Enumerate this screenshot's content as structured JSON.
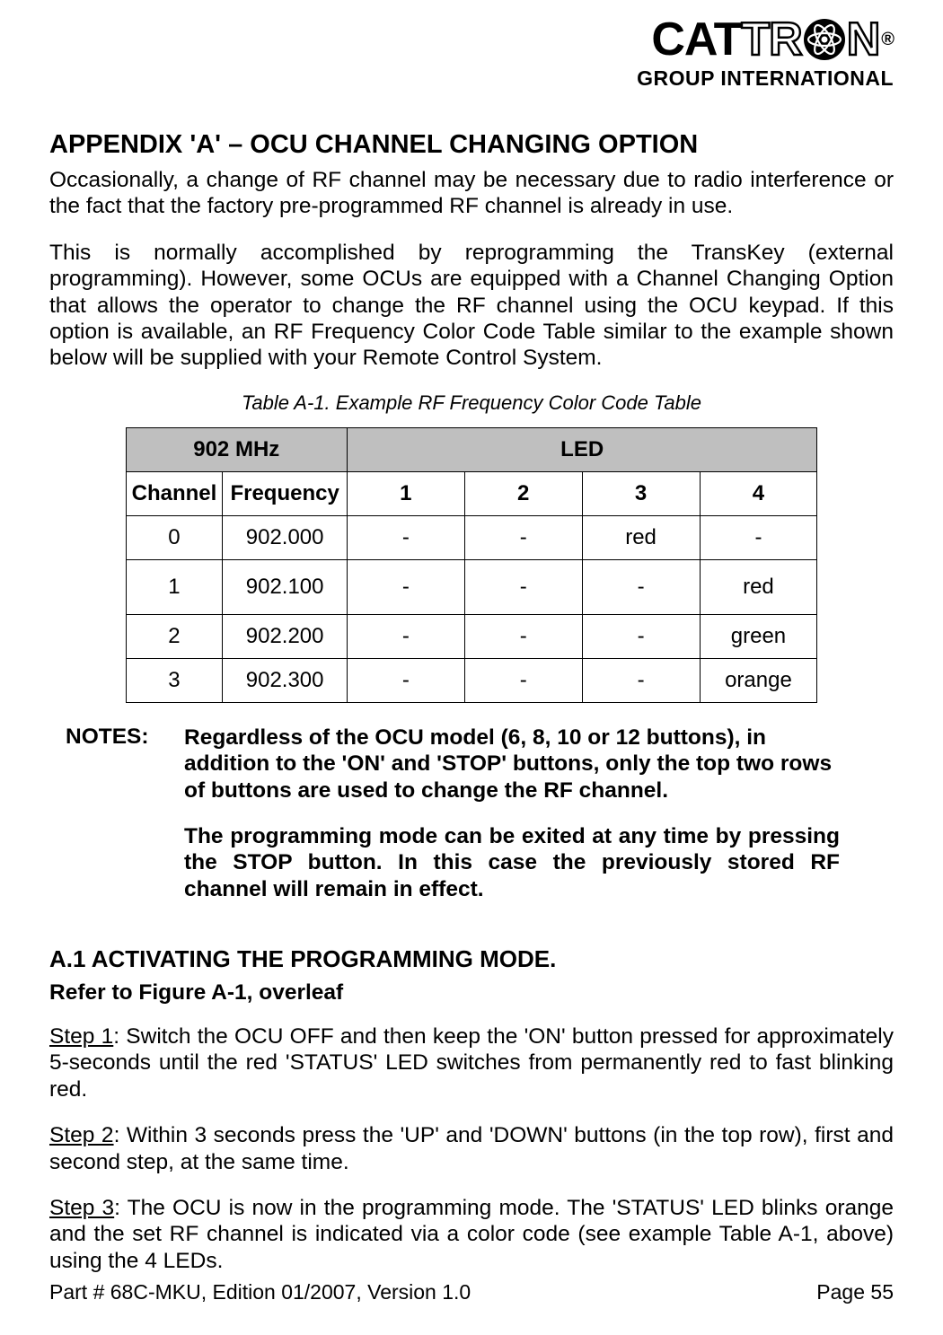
{
  "logo": {
    "text_solid": "CAT",
    "text_outline": "TR",
    "text_outline2": "N",
    "registered": "®",
    "subtitle": "GROUP INTERNATIONAL"
  },
  "title": "APPENDIX 'A' – OCU CHANNEL CHANGING OPTION",
  "para1": "Occasionally, a change of RF channel may be necessary due to radio interference or the fact that the factory pre-programmed RF channel is already in use.",
  "para2": "This is normally accomplished by reprogramming the TransKey (external programming). However, some OCUs are equipped with a Channel Changing Option that allows the operator to change the RF channel using the OCU keypad.   If this option is available, an RF Frequency Color Code Table similar to the example shown below will be supplied with your Remote Control System.",
  "table": {
    "caption": "Table A-1.  Example RF Frequency Color Code Table",
    "group_headers": {
      "mhz": "902 MHz",
      "led": "LED"
    },
    "sub_headers": {
      "channel": "Channel",
      "frequency": "Frequency",
      "l1": "1",
      "l2": "2",
      "l3": "3",
      "l4": "4"
    },
    "rows": [
      {
        "ch": "0",
        "freq": "902.000",
        "l1": "-",
        "l2": "-",
        "l3": "red",
        "l4": "-",
        "tall": false
      },
      {
        "ch": "1",
        "freq": "902.100",
        "l1": "-",
        "l2": "-",
        "l3": "-",
        "l4": "red",
        "tall": true
      },
      {
        "ch": "2",
        "freq": "902.200",
        "l1": "-",
        "l2": "-",
        "l3": "-",
        "l4": "green",
        "tall": false
      },
      {
        "ch": "3",
        "freq": "902.300",
        "l1": "-",
        "l2": "-",
        "l3": "-",
        "l4": "orange",
        "tall": false
      }
    ],
    "header_bg": "#bfbfbf",
    "border_color": "#000000"
  },
  "notes": {
    "label": "NOTES:",
    "p1": "Regardless of the OCU model (6, 8, 10 or 12 buttons), in addition to the 'ON' and 'STOP' buttons, only the top two rows of buttons are used to change the RF channel.",
    "p2": "The programming mode can be exited at any time by pressing the STOP button. In this case the previously stored RF channel will remain in effect."
  },
  "section_a1": {
    "heading": "A.1   ACTIVATING THE PROGRAMMING MODE.",
    "subhead": "Refer to Figure A-1, overleaf",
    "steps": [
      {
        "label": "Step 1",
        "text": ": Switch the OCU OFF and then keep the 'ON' button pressed for approximately 5-seconds until the red 'STATUS' LED switches from permanently red to fast blinking red."
      },
      {
        "label": "Step 2",
        "text": ": Within 3 seconds press the 'UP' and 'DOWN' buttons (in the top row), first and second step, at the same time."
      },
      {
        "label": "Step 3",
        "text": ": The OCU is now in the programming mode. The 'STATUS' LED blinks orange and the set RF channel is indicated via a color code (see example Table A-1, above) using the 4 LEDs."
      }
    ]
  },
  "footer": {
    "left": "Part # 68C-MKU, Edition 01/2007, Version 1.0",
    "right": "Page 55"
  }
}
